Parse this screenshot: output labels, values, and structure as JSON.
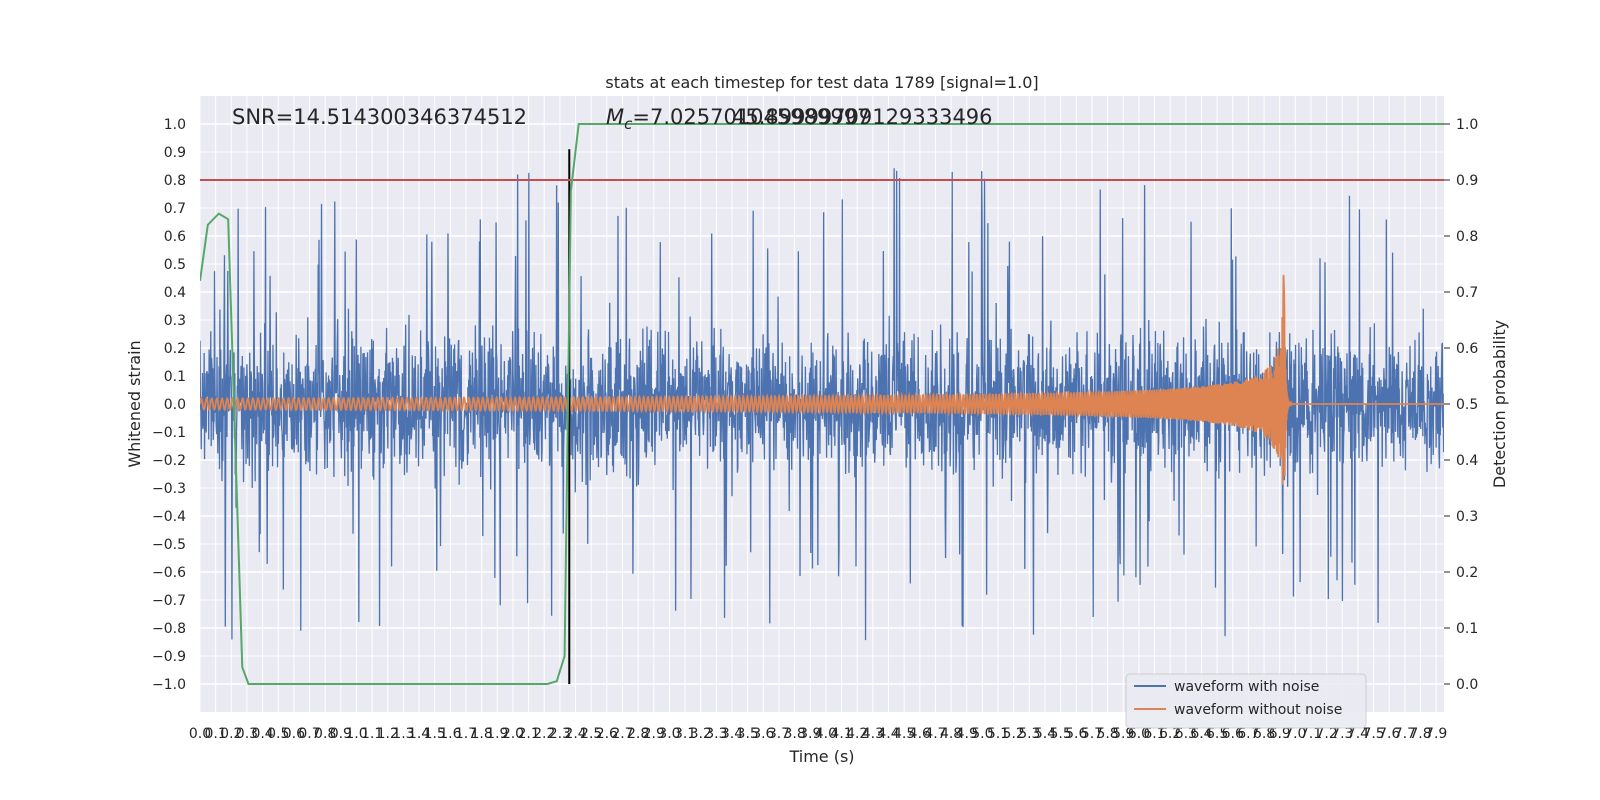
{
  "chart_data": {
    "type": "line",
    "title": "stats at each timestep for test data 1789 [signal=1.0]",
    "xlabel": "Time (s)",
    "ylabel": "Whitened strain",
    "y2label": "Detection probability",
    "xlim": [
      0.0,
      7.95
    ],
    "ylim": [
      -1.1,
      1.1
    ],
    "y2lim": [
      -0.05,
      1.05
    ],
    "x_ticks": [
      0.0,
      0.1,
      0.2,
      0.3,
      0.4,
      0.5,
      0.6,
      0.7,
      0.8,
      0.9,
      1.0,
      1.1,
      1.2,
      1.3,
      1.4,
      1.5,
      1.6,
      1.7,
      1.8,
      1.9,
      2.0,
      2.1,
      2.2,
      2.3,
      2.4,
      2.5,
      2.6,
      2.7,
      2.8,
      2.9,
      3.0,
      3.1,
      3.2,
      3.3,
      3.4,
      3.5,
      3.6,
      3.7,
      3.8,
      3.9,
      4.0,
      4.1,
      4.2,
      4.3,
      4.4,
      4.5,
      4.6,
      4.7,
      4.8,
      4.9,
      5.0,
      5.1,
      5.2,
      5.3,
      5.4,
      5.5,
      5.6,
      5.7,
      5.8,
      5.9,
      6.0,
      6.1,
      6.2,
      6.3,
      6.4,
      6.5,
      6.6,
      6.7,
      6.8,
      6.9,
      7.0,
      7.1,
      7.2,
      7.3,
      7.4,
      7.5,
      7.6,
      7.7,
      7.8,
      7.9
    ],
    "x_tick_labels": [
      "0.0",
      "0.1",
      "0.2",
      "0.3",
      "0.4",
      "0.5",
      "0.6",
      "0.7",
      "0.8",
      "0.9",
      "1.0",
      "1.1",
      "1.2",
      "1.3",
      "1.4",
      "1.5",
      "1.6",
      "1.7",
      "1.8",
      "1.9",
      "2.0",
      "2.1",
      "2.2",
      "2.3",
      "2.4",
      "2.5",
      "2.6",
      "2.7",
      "2.8",
      "2.9",
      "3.0",
      "3.1",
      "3.2",
      "3.3",
      "3.4",
      "3.5",
      "3.6",
      "3.7",
      "3.8",
      "3.9",
      "4.0",
      "4.1",
      "4.2",
      "4.3",
      "4.4",
      "4.5",
      "4.6",
      "4.7",
      "4.8",
      "4.9",
      "5.0",
      "5.1",
      "5.2",
      "5.3",
      "5.4",
      "5.5",
      "5.6",
      "5.7",
      "5.8",
      "5.9",
      "6.0",
      "6.1",
      "6.2",
      "6.3",
      "6.4",
      "6.5",
      "6.6",
      "6.7",
      "6.8",
      "6.9",
      "7.0",
      "7.1",
      "7.2",
      "7.3",
      "7.4",
      "7.5",
      "7.6",
      "7.7",
      "7.8",
      "7.9"
    ],
    "y_ticks": [
      1.0,
      0.9,
      0.8,
      0.7,
      0.6,
      0.5,
      0.4,
      0.3,
      0.2,
      0.1,
      0.0,
      -0.1,
      -0.2,
      -0.3,
      -0.4,
      -0.5,
      -0.6,
      -0.7,
      -0.8,
      -0.9,
      -1.0
    ],
    "y_tick_labels": [
      "1.0",
      "0.9",
      "0.8",
      "0.7",
      "0.6",
      "0.5",
      "0.4",
      "0.3",
      "0.2",
      "0.1",
      "0.0",
      "−0.1",
      "−0.2",
      "−0.3",
      "−0.4",
      "−0.5",
      "−0.6",
      "−0.7",
      "−0.8",
      "−0.9",
      "−1.0"
    ],
    "y2_ticks": [
      1.0,
      0.9,
      0.8,
      0.7,
      0.6,
      0.5,
      0.4,
      0.3,
      0.2,
      0.1,
      0.0
    ],
    "y2_tick_labels": [
      "1.0",
      "0.9",
      "0.8",
      "0.7",
      "0.6",
      "0.5",
      "0.4",
      "0.3",
      "0.2",
      "0.1",
      "0.0"
    ],
    "annotations": {
      "snr": "SNR=14.514300346374512",
      "mc_text": "=7.025701045989997",
      "mc_symbol": "M",
      "mc_subscript": "c",
      "overlap_text": "45.89999709129333496"
    },
    "threshold_line": {
      "y2": 0.9,
      "color": "#c44e52"
    },
    "marker_line": {
      "x": 2.36,
      "y_range": [
        -1.0,
        0.91
      ],
      "color": "#000000"
    },
    "series": [
      {
        "name": "waveform with noise",
        "color": "#4c72b0",
        "axis": "left",
        "note": "dense whitened noise, amplitude roughly within -1.0 to 0.9"
      },
      {
        "name": "waveform without noise",
        "color": "#dd8452",
        "axis": "left",
        "merger_time": 6.93,
        "peak_amplitude": 0.5,
        "min_amplitude": -0.3,
        "early_amplitude": 0.02
      },
      {
        "name": "detection probability",
        "color": "#55a868",
        "axis": "right",
        "x": [
          0.0,
          0.05,
          0.12,
          0.18,
          0.27,
          0.31,
          1.0,
          1.5,
          2.0,
          2.22,
          2.28,
          2.33,
          2.37,
          2.42,
          2.6,
          5.0,
          7.95
        ],
        "y": [
          0.72,
          0.82,
          0.84,
          0.83,
          0.03,
          0.0,
          0.0,
          0.0,
          0.0,
          0.0,
          0.005,
          0.05,
          0.88,
          1.0,
          1.0,
          1.0,
          1.0
        ]
      }
    ],
    "legend": {
      "position": "lower-right",
      "entries": [
        {
          "label": "waveform with noise",
          "color": "#4c72b0"
        },
        {
          "label": "waveform without noise",
          "color": "#dd8452"
        }
      ]
    },
    "grid": true,
    "background": "#eaeaf2"
  }
}
